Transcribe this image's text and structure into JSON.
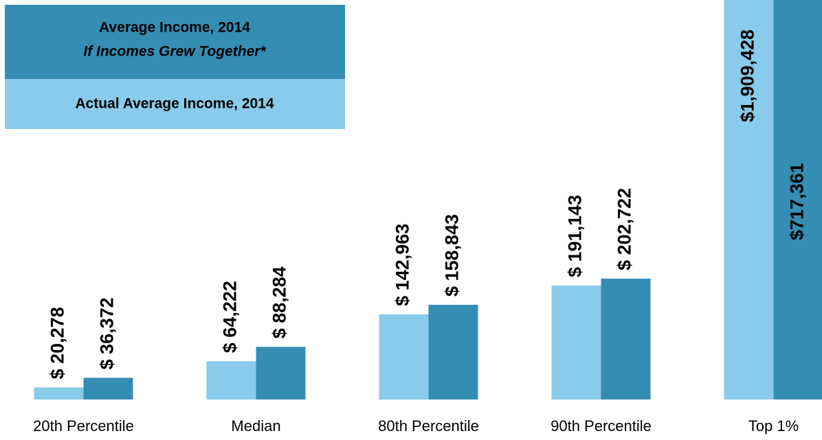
{
  "chart_data": {
    "type": "bar",
    "categories": [
      "20th Percentile",
      "Median",
      "80th Percentile",
      "90th Percentile",
      "Top 1%"
    ],
    "series": [
      {
        "name": "Actual Average Income, 2014",
        "color": "#89cbea",
        "values": [
          20278,
          64222,
          142963,
          191143,
          1909428
        ],
        "value_labels": [
          "$ 20,278",
          "$ 64,222",
          "$ 142,963",
          "$ 191,143",
          "$1,909,428"
        ]
      },
      {
        "name": "Average Income, 2014",
        "name_note": "If Incomes Grew Together*",
        "color": "#358db4",
        "values": [
          36372,
          88284,
          158843,
          202722,
          717361
        ],
        "value_labels": [
          "$ 36,372",
          "$ 88,284",
          "$ 158,843",
          "$ 202,722",
          "$717,361"
        ]
      }
    ],
    "ylim": [
      0,
      670000
    ]
  }
}
